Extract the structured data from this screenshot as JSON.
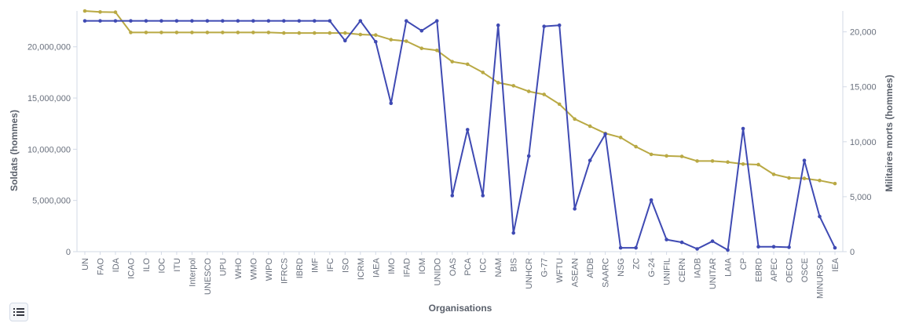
{
  "chart_data": {
    "type": "line",
    "xlabel": "Organisations",
    "ylabel_left": "Soldats (hommes)",
    "ylabel_right": "Militaires morts (hommes)",
    "ylim_left": [
      0,
      23500000
    ],
    "ylim_right": [
      0,
      21900
    ],
    "yticks_left": [
      "0",
      "5,000,000",
      "10,000,000",
      "15,000,000",
      "20,000,000"
    ],
    "yticks_left_values": [
      0,
      5000000,
      10000000,
      15000000,
      20000000
    ],
    "yticks_right": [
      "0",
      "5,000",
      "10,000",
      "15,000",
      "20,000"
    ],
    "yticks_right_values": [
      0,
      5000,
      10000,
      15000,
      20000
    ],
    "colors": {
      "soldats": "#b9a944",
      "morts": "#3f4ab3"
    },
    "categories": [
      "UN",
      "FAO",
      "IDA",
      "ICAO",
      "ILO",
      "IOC",
      "ITU",
      "Interpol",
      "UNESCO",
      "UPU",
      "WHO",
      "WMO",
      "WIPO",
      "IFRCS",
      "IBRD",
      "IMF",
      "IFC",
      "ISO",
      "ICRM",
      "IAEA",
      "IMO",
      "IFAD",
      "IOM",
      "UNIDO",
      "OAS",
      "PCA",
      "ICC",
      "NAM",
      "BIS",
      "UNHCR",
      "G-77",
      "WFTU",
      "ASEAN",
      "AfDB",
      "SAARC",
      "NSG",
      "ZC",
      "G-24",
      "UNIFIL",
      "CERN",
      "IADB",
      "UNITAR",
      "LAIA",
      "CP",
      "EBRD",
      "APEC",
      "OECD",
      "OSCE",
      "MINURSO",
      "IEA"
    ],
    "series": [
      {
        "key": "soldats",
        "axis": "left",
        "values": [
          23500000,
          23400000,
          23380000,
          21400000,
          21400000,
          21400000,
          21400000,
          21400000,
          21400000,
          21400000,
          21400000,
          21400000,
          21400000,
          21350000,
          21350000,
          21350000,
          21350000,
          21350000,
          21200000,
          21150000,
          20700000,
          20550000,
          19850000,
          19650000,
          18550000,
          18300000,
          17500000,
          16500000,
          16200000,
          15650000,
          15350000,
          14400000,
          12950000,
          12250000,
          11550000,
          11150000,
          10250000,
          9500000,
          9350000,
          9300000,
          8850000,
          8850000,
          8750000,
          8550000,
          8500000,
          7550000,
          7200000,
          7150000,
          6950000,
          6650000
        ]
      },
      {
        "key": "morts",
        "axis": "right",
        "values": [
          21000,
          21000,
          21000,
          21000,
          21000,
          21000,
          21000,
          21000,
          21000,
          21000,
          21000,
          21000,
          21000,
          21000,
          21000,
          21000,
          21000,
          19200,
          21000,
          19100,
          13500,
          21000,
          20100,
          21000,
          5100,
          11100,
          5100,
          20600,
          1700,
          8700,
          20500,
          20600,
          3900,
          8300,
          10700,
          350,
          350,
          4700,
          1100,
          850,
          250,
          950,
          150,
          11200,
          450,
          450,
          400,
          8300,
          3200,
          350
        ]
      }
    ]
  }
}
